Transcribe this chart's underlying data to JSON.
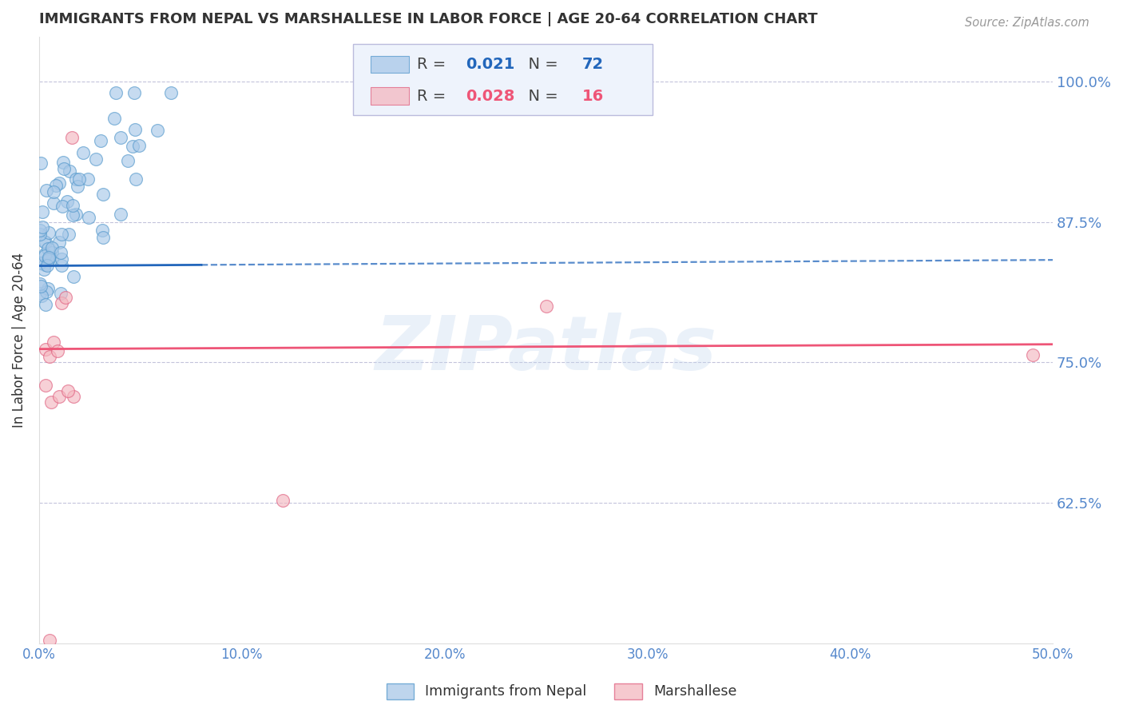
{
  "title": "IMMIGRANTS FROM NEPAL VS MARSHALLESE IN LABOR FORCE | AGE 20-64 CORRELATION CHART",
  "source": "Source: ZipAtlas.com",
  "ylabel": "In Labor Force | Age 20-64",
  "xlim": [
    0.0,
    0.5
  ],
  "ylim": [
    0.5,
    1.04
  ],
  "yticks": [
    0.625,
    0.75,
    0.875,
    1.0
  ],
  "ytick_labels": [
    "62.5%",
    "75.0%",
    "87.5%",
    "100.0%"
  ],
  "xticks": [
    0.0,
    0.1,
    0.2,
    0.3,
    0.4,
    0.5
  ],
  "xtick_labels": [
    "0.0%",
    "10.0%",
    "20.0%",
    "30.0%",
    "40.0%",
    "50.0%"
  ],
  "nepal_color": "#a8c8e8",
  "nepal_edge_color": "#5599cc",
  "marshallese_color": "#f4b8c0",
  "marshallese_edge_color": "#e06080",
  "nepal_R": 0.021,
  "nepal_N": 72,
  "marshallese_R": 0.028,
  "marshallese_N": 16,
  "nepal_trend_color": "#2266bb",
  "marshallese_trend_color": "#ee5577",
  "background_color": "#ffffff",
  "grid_color": "#aaaacc",
  "title_color": "#333333",
  "axis_label_color": "#333333",
  "tick_label_color": "#5588cc",
  "watermark": "ZIPatlas",
  "legend_box_color": "#eef3fc",
  "legend_border_color": "#bbbbdd",
  "nepal_trend_solid_end": 0.08,
  "nepal_trend_start": 0.0,
  "nepal_trend_end": 0.5,
  "marsh_trend_start": 0.0,
  "marsh_trend_end": 0.5
}
